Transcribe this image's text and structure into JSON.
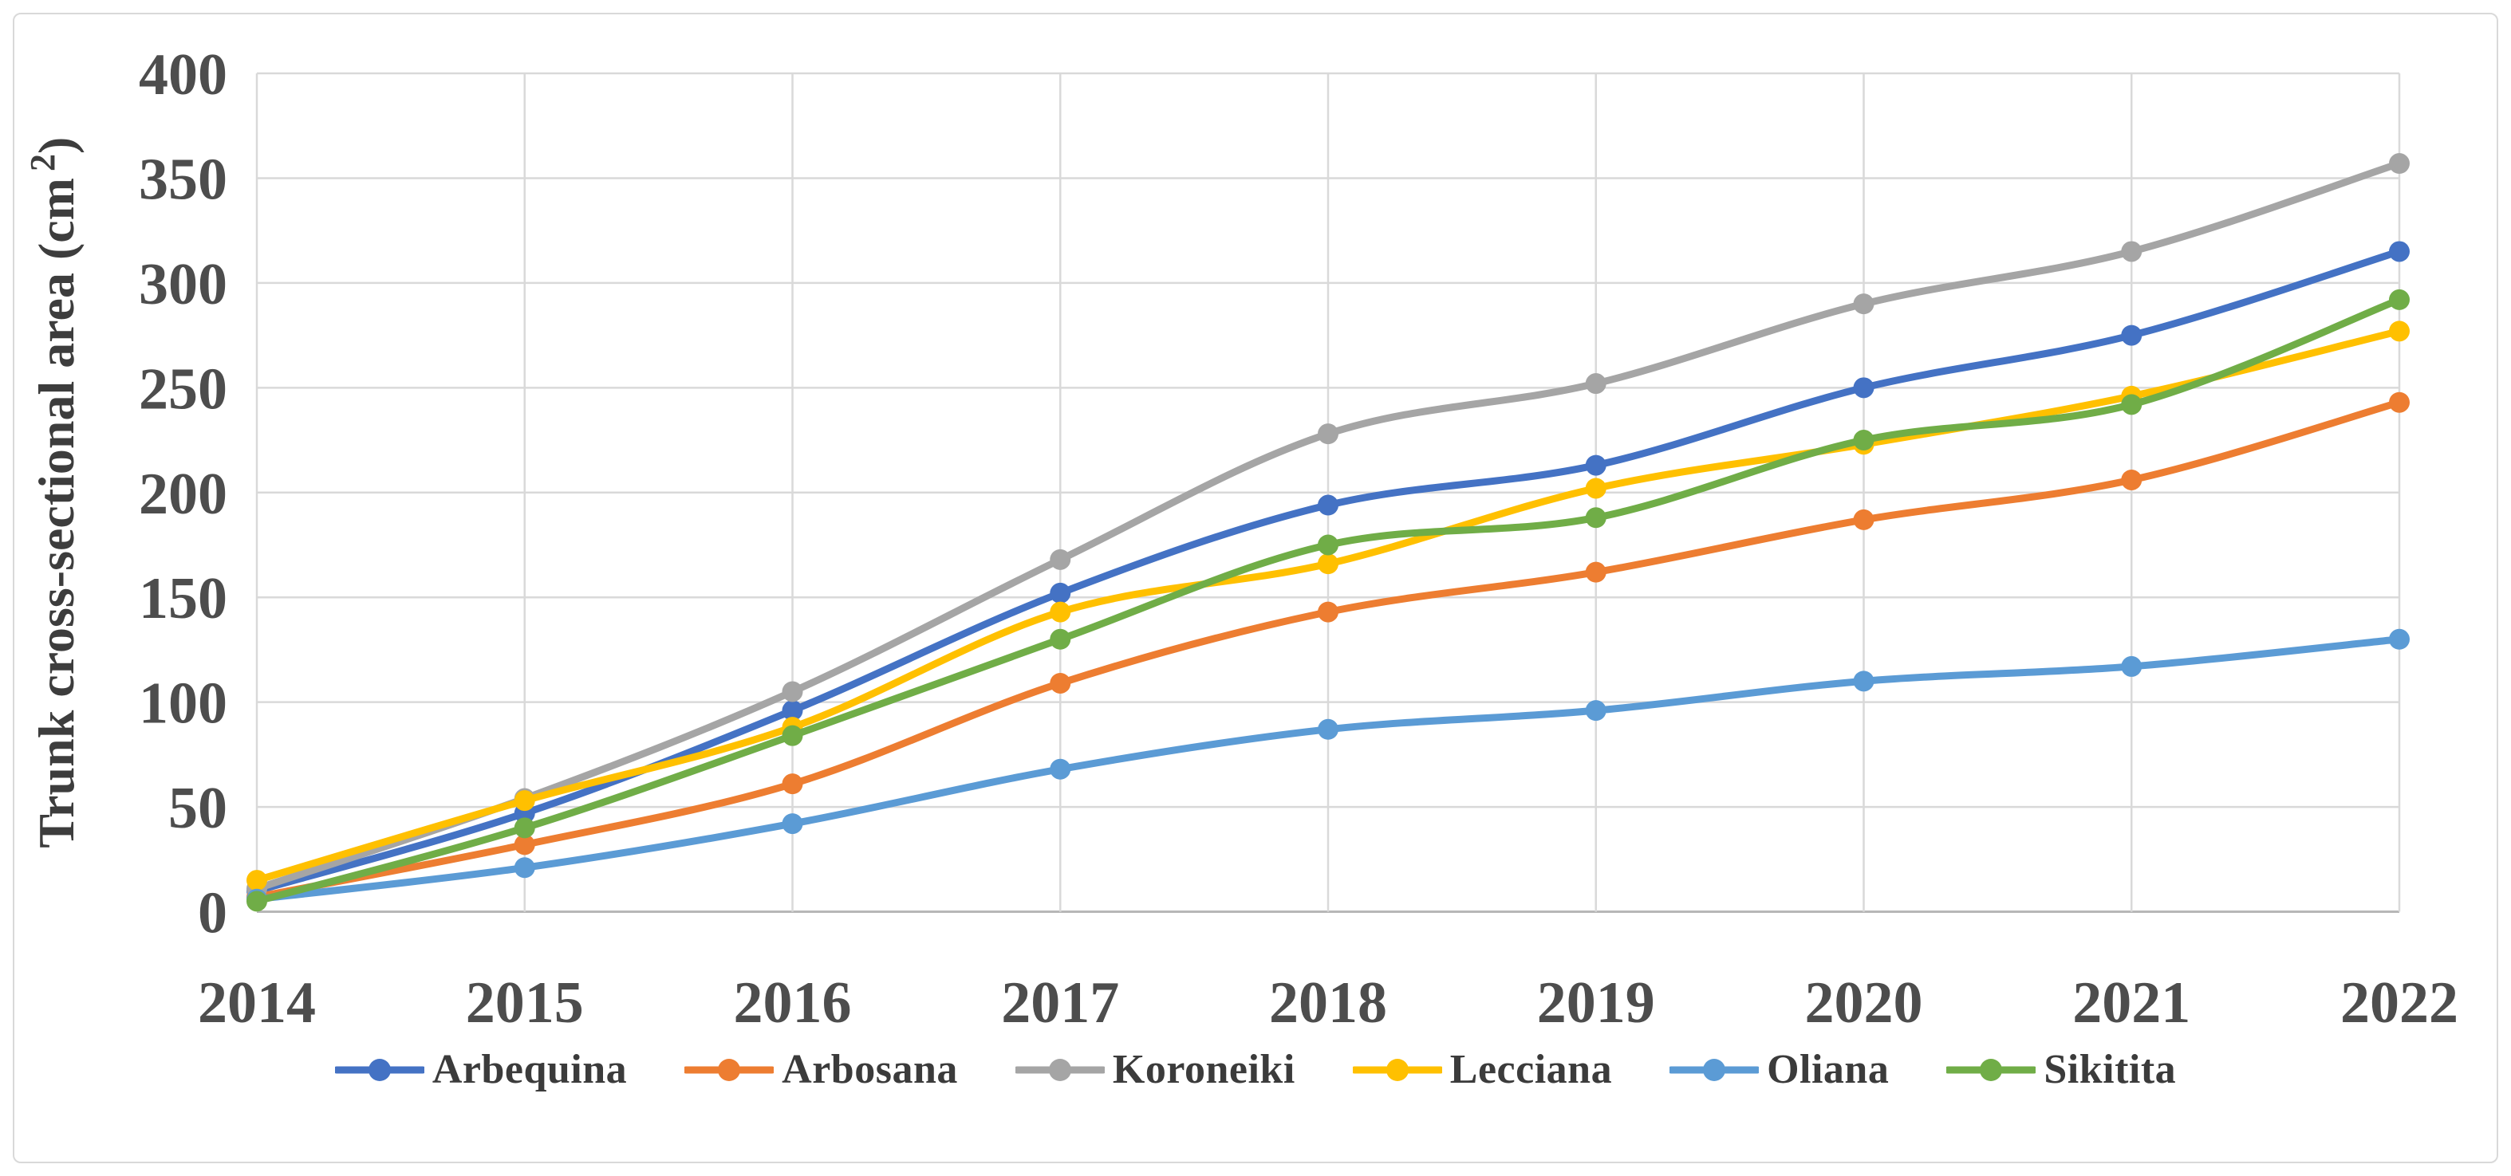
{
  "figure": {
    "background": "#ffffff",
    "frame_border_color": "#d9d9d9",
    "gridline_color": "#d9d9d9",
    "axis_line_color": "#b7b7b7",
    "tick_label_color": "#4d4d4d"
  },
  "chart_data": {
    "type": "line",
    "title": "",
    "xlabel": "",
    "ylabel": "Trunk cross-sectional area (cm²)",
    "ylabel_prefix": "Trunk cross-sectional area (cm",
    "ylabel_sup": "2",
    "ylabel_suffix": ")",
    "ylim": [
      0,
      400
    ],
    "y_ticks": [
      "0",
      "50",
      "100",
      "150",
      "200",
      "250",
      "300",
      "350",
      "400"
    ],
    "grid": true,
    "line_style": "smooth",
    "marker": "circle",
    "legend_position": "bottom",
    "categories": [
      "2014",
      "2015",
      "2016",
      "2017",
      "2018",
      "2019",
      "2020",
      "2021",
      "2022"
    ],
    "series": [
      {
        "name": "Arbequina",
        "color": "#4472C4",
        "values": [
          10,
          47,
          96,
          152,
          194,
          213,
          250,
          275,
          315
        ]
      },
      {
        "name": "Arbosana",
        "color": "#ED7D31",
        "values": [
          7,
          32,
          61,
          109,
          143,
          162,
          187,
          206,
          243
        ]
      },
      {
        "name": "Koroneiki",
        "color": "#A5A5A5",
        "values": [
          11,
          54,
          105,
          168,
          228,
          252,
          290,
          315,
          357
        ]
      },
      {
        "name": "Lecciana",
        "color": "#FFC000",
        "values": [
          15,
          53,
          88,
          143,
          166,
          202,
          223,
          246,
          277
        ]
      },
      {
        "name": "Oliana",
        "color": "#5B9BD5",
        "values": [
          6,
          21,
          42,
          68,
          87,
          96,
          110,
          117,
          130
        ]
      },
      {
        "name": "Sikitita",
        "color": "#70AD47",
        "values": [
          5,
          40,
          84,
          130,
          175,
          188,
          225,
          242,
          292
        ]
      }
    ]
  }
}
